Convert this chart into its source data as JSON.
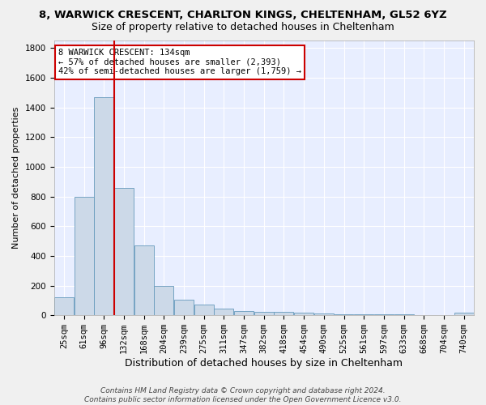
{
  "title1": "8, WARWICK CRESCENT, CHARLTON KINGS, CHELTENHAM, GL52 6YZ",
  "title2": "Size of property relative to detached houses in Cheltenham",
  "xlabel": "Distribution of detached houses by size in Cheltenham",
  "ylabel": "Number of detached properties",
  "bin_labels": [
    "25sqm",
    "61sqm",
    "96sqm",
    "132sqm",
    "168sqm",
    "204sqm",
    "239sqm",
    "275sqm",
    "311sqm",
    "347sqm",
    "382sqm",
    "418sqm",
    "454sqm",
    "490sqm",
    "525sqm",
    "561sqm",
    "597sqm",
    "633sqm",
    "668sqm",
    "704sqm",
    "740sqm"
  ],
  "bar_values": [
    120,
    800,
    1470,
    860,
    470,
    200,
    105,
    70,
    45,
    30,
    25,
    25,
    15,
    10,
    5,
    5,
    5,
    5,
    2,
    2,
    15
  ],
  "property_bin_index": 3,
  "annotation_line1": "8 WARWICK CRESCENT: 134sqm",
  "annotation_line2": "← 57% of detached houses are smaller (2,393)",
  "annotation_line3": "42% of semi-detached houses are larger (1,759) →",
  "bar_color": "#ccd9e8",
  "bar_edge_color": "#6699bb",
  "bg_color": "#e8eeff",
  "grid_color": "#ffffff",
  "fig_bg_color": "#f0f0f0",
  "red_line_color": "#cc0000",
  "annotation_box_color": "#ffffff",
  "annotation_box_edge": "#cc0000",
  "footer_line1": "Contains HM Land Registry data © Crown copyright and database right 2024.",
  "footer_line2": "Contains public sector information licensed under the Open Government Licence v3.0.",
  "ylim": [
    0,
    1850
  ],
  "title1_fontsize": 9.5,
  "title2_fontsize": 9,
  "ylabel_fontsize": 8,
  "xlabel_fontsize": 9,
  "tick_fontsize": 7.5,
  "annot_fontsize": 7.5,
  "footer_fontsize": 6.5
}
